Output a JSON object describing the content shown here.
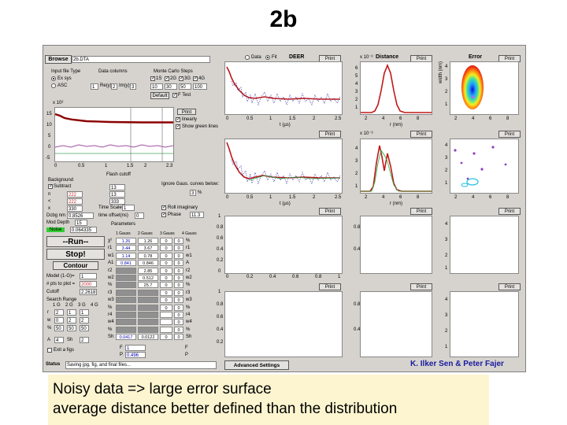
{
  "slide": {
    "title": "2b",
    "caption_line1": "Noisy data => large error surface",
    "caption_line2": "average distance better defined than the distribution"
  },
  "app": {
    "browse_label": "Browse",
    "file_value": "2b.DTA",
    "input_file_type": "Input file Type",
    "data_columns": "Data columns",
    "exsys": "Ex sys",
    "asc": "ASC",
    "col_x_value": "1",
    "re_label": "Re(y)",
    "re_value": "2",
    "im_label": "Im(y)",
    "im_value": "3",
    "monte_carlo": "Monte Carlo Steps",
    "mc_options": [
      "1S",
      "2G",
      "3G",
      "4G"
    ],
    "mc_values": [
      "10",
      "30",
      "50",
      "100"
    ],
    "default_btn": "Default",
    "ftest_label": "F Test",
    "data_radio": "Data",
    "fit_radio": "Fit",
    "deer_label": "DEER",
    "print": "Print",
    "distance_label": "Distance",
    "error_label": "Error",
    "linearly_label": "linearly",
    "show_green": "Show green lines",
    "background": "Background",
    "subtract": "Subtract",
    "bg_values": [
      "222",
      "222",
      "330"
    ],
    "bg_letters": [
      "n",
      "<",
      "x"
    ],
    "debg_label": "Dcbg nm",
    "debg_value": "0.8526",
    "mod_depth_label": "Mod Depth",
    "mod_depth_value": "15",
    "noise_label": "Noise",
    "noise_value": "0.064335",
    "flash_cutoff": "Flash cutoff",
    "cut_values": [
      "13",
      "13",
      "333"
    ],
    "time_scale_label": "Time Scale",
    "time_scale_value": "1",
    "time_offset_label": "time offset(ns)",
    "time_offset_value": "0",
    "ignore_label": "Ignore Gaus. curves below:",
    "ignore_value": "3",
    "ignore_unit": "%",
    "roll_label": "Roll imaginary",
    "phase_label": "Phase",
    "phase_value": "11.3",
    "run_btn": "--Run--",
    "stop_btn": "Stop!",
    "contour_btn": "Contour",
    "model_label": "Model (1-G)=",
    "model_value": "1",
    "pts_label": "# pts to plot =",
    "pts_value": "2000",
    "cutoff_label": "Cutoff",
    "cutoff_value": "2.2618",
    "search_range": "Search Range",
    "search_cols": [
      "1 G",
      "2 G",
      "3 G",
      "4 G"
    ],
    "search_rows": [
      {
        "k": "r",
        "v": [
          "2",
          "1",
          "1"
        ]
      },
      {
        "k": "w",
        "v": [
          "0",
          "2",
          "2"
        ]
      },
      {
        "k": "%",
        "v": [
          "50",
          "50",
          "50"
        ]
      },
      {
        "k": "A",
        "v": [
          "4",
          "Sh",
          "2"
        ]
      }
    ],
    "exit_label": "Exit a figs",
    "parameters": "Parameters",
    "param_cols": [
      "1 Gauss",
      "2 Gauss",
      "3 Gauss",
      "4 Gauss"
    ],
    "param_rows": [
      {
        "k": "χ²",
        "v": [
          "1.26",
          "1.26",
          "0",
          "0"
        ],
        "u": "%"
      },
      {
        "k": "r1",
        "v": [
          "3.44",
          "3.67",
          "0",
          "0"
        ],
        "u": "r1"
      },
      {
        "k": "w1",
        "v": [
          "1.14",
          "0.78",
          "0",
          "0"
        ],
        "u": "w1"
      },
      {
        "k": "A1",
        "v": [
          "0.841",
          "0.846",
          "0",
          "0"
        ],
        "u": "A"
      },
      {
        "k": "r2",
        "v": [
          "",
          "2.85",
          "0",
          "0"
        ],
        "u": "r2"
      },
      {
        "k": "w2",
        "v": [
          "",
          "0.512",
          "0",
          "0"
        ],
        "u": "w2"
      },
      {
        "k": "%",
        "v": [
          "",
          "25.7",
          "0",
          "0"
        ],
        "u": "%"
      },
      {
        "k": "r3",
        "v": [
          "",
          "",
          "0",
          "0"
        ],
        "u": "r3"
      },
      {
        "k": "w3",
        "v": [
          "",
          "",
          "0",
          "0"
        ],
        "u": "w3"
      },
      {
        "k": "%",
        "v": [
          "",
          "",
          "0",
          "0"
        ],
        "u": "%"
      },
      {
        "k": "r4",
        "v": [
          "",
          "",
          "",
          "0"
        ],
        "u": "r4"
      },
      {
        "k": "w4",
        "v": [
          "",
          "",
          "",
          "0"
        ],
        "u": "w4"
      },
      {
        "k": "%",
        "v": [
          "",
          "",
          "",
          "0"
        ],
        "u": "%"
      },
      {
        "k": "Sh",
        "v": [
          "0.0417",
          "0.0122",
          "0",
          "0"
        ],
        "u": "Sh"
      }
    ],
    "f_label": "F",
    "f_value": "1",
    "p_label": "P",
    "p_value": "0.496",
    "status_label": "Status",
    "status_value": "Saving jpg, fig, and final files...",
    "advanced_btn": "Advanced Settings",
    "credit": "K. Ilker Sen & Peter Fajer",
    "axis": {
      "t_label": "t (µs)",
      "r_label": "r (nm)",
      "w_label": "width (nm)",
      "x10_3": "x 10⁻³",
      "x10_4": "x 10⁻⁴",
      "x10_2": "x 10²",
      "deer_ticks": [
        "0",
        "0.5",
        "1",
        "1.5",
        "2",
        "2.5"
      ],
      "raw_ticks": [
        "0",
        "0.5",
        "1",
        "1.5",
        "2",
        "2.3"
      ],
      "raw_y": [
        "15",
        "10",
        "5",
        "0",
        "-5"
      ],
      "dist_ticks": [
        "2",
        "4",
        "6",
        "8"
      ],
      "dist_y": [
        "6",
        "5",
        "4",
        "3",
        "2",
        "1"
      ],
      "err_y": [
        "4",
        "3",
        "2",
        "1"
      ],
      "empty_y": [
        "1",
        "0.8",
        "0.6",
        "0.4",
        "0.2",
        "0"
      ],
      "empty_x": [
        "0",
        "0.2",
        "0.4",
        "0.6",
        "0.8",
        "1"
      ],
      "dist_y2": [
        "4",
        "3",
        "2",
        "1"
      ],
      "err_y2": [
        "4",
        "3",
        "2",
        "1"
      ],
      "err_ticks": [
        "2",
        "4",
        "6",
        "8"
      ]
    }
  }
}
